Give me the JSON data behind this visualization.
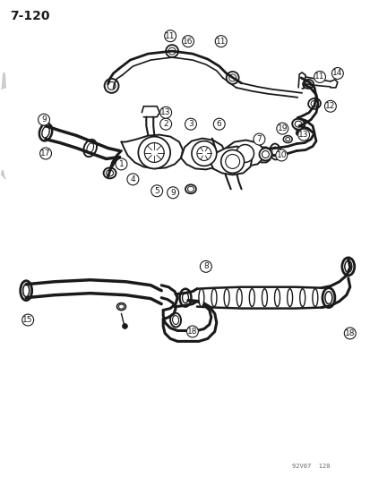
{
  "page_label": "7-120",
  "watermark": "92V07  120",
  "background_color": "#ffffff",
  "line_color": "#1a1a1a",
  "fig_width": 4.14,
  "fig_height": 5.33,
  "dpi": 100
}
